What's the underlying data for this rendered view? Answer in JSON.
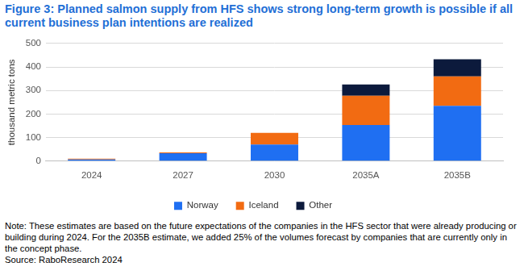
{
  "chart_data": {
    "type": "bar",
    "title": "Figure 3: Planned salmon supply from HFS shows strong long-term growth is possible if all current business plan intentions are realized",
    "y_label": "thousand metric tons",
    "categories": [
      "2024",
      "2027",
      "2030",
      "2035A",
      "2035B"
    ],
    "series": [
      {
        "name": "Norway",
        "color": "#1f6ff2",
        "values": [
          7,
          33,
          70,
          153,
          235
        ]
      },
      {
        "name": "Iceland",
        "color": "#f26b12",
        "values": [
          3,
          4,
          50,
          125,
          125
        ]
      },
      {
        "name": "Other",
        "color": "#0c1a3c",
        "values": [
          0,
          0,
          0,
          48,
          73
        ]
      }
    ],
    "ylim": [
      0,
      500
    ],
    "yticks": [
      0,
      100,
      200,
      300,
      400,
      500
    ],
    "grid": true,
    "stacked": true,
    "legend": "bottom",
    "annotations": [
      "Note: These estimates are based on the future expectations of the companies in the HFS sector that were already producing or building during 2024. For the 2035B estimate, we added 25% of the volumes forecast by companies that are currently only in the concept phase.",
      "Source: RaboResearch 2024"
    ]
  }
}
